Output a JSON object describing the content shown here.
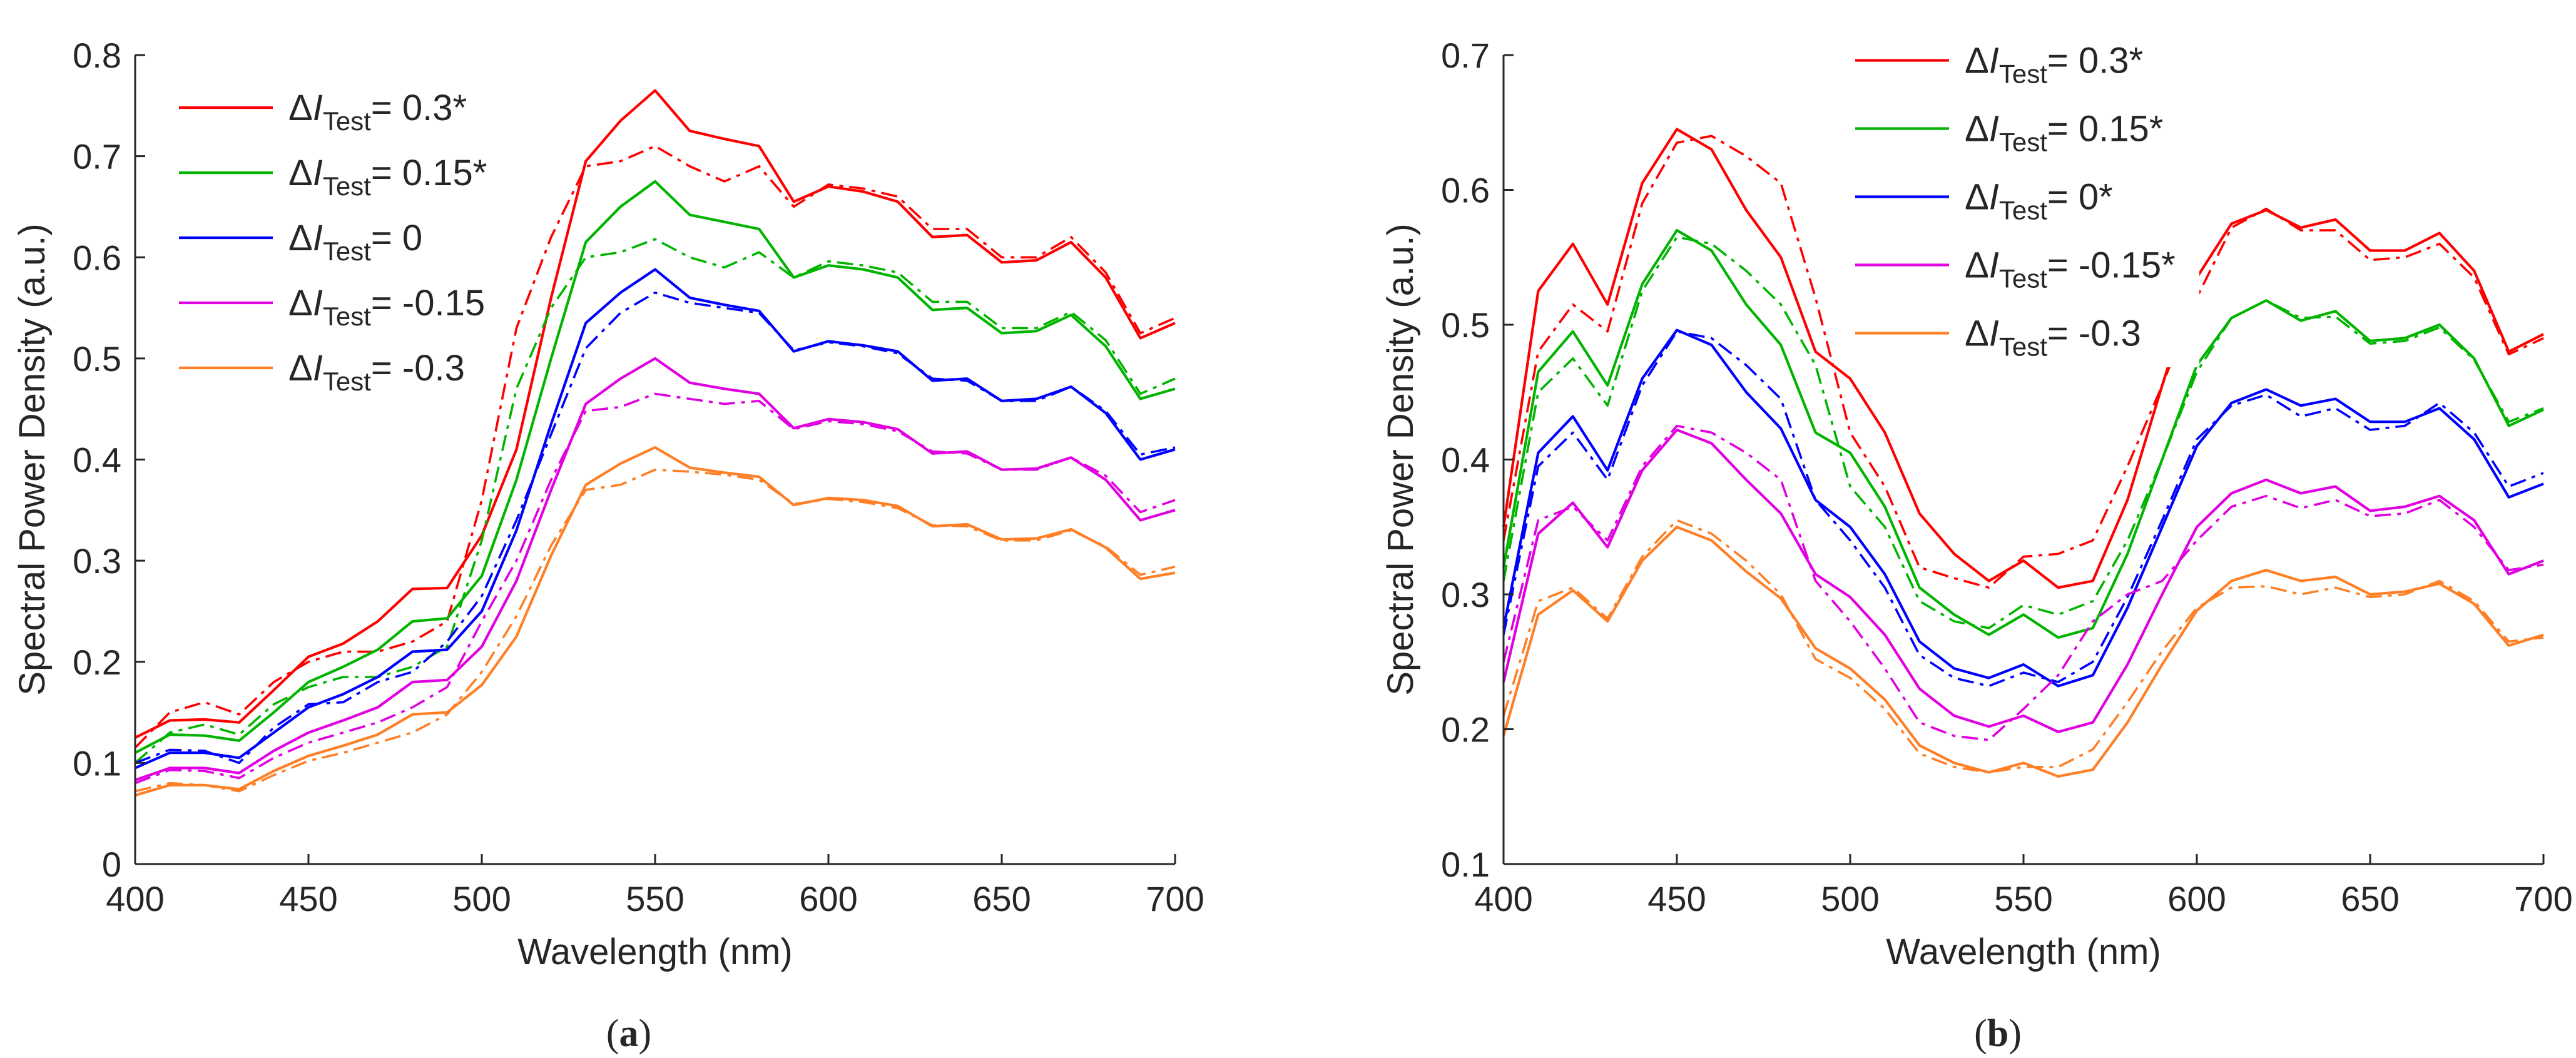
{
  "chart_data": [
    {
      "type": "line",
      "panel_label": "a",
      "title": "",
      "xlabel": "Wavelength (nm)",
      "ylabel": "Spectral Power Density (a.u.)",
      "xlim": [
        400,
        700
      ],
      "ylim": [
        0,
        0.8
      ],
      "xticks": [
        400,
        450,
        500,
        550,
        600,
        650,
        700
      ],
      "yticks": [
        0,
        0.1,
        0.2,
        0.3,
        0.4,
        0.5,
        0.6,
        0.7,
        0.8
      ],
      "ytick_labels": [
        "0",
        "0.1",
        "0.2",
        "0.3",
        "0.4",
        "0.5",
        "0.6",
        "0.7",
        "0.8"
      ],
      "grid": false,
      "legend_position": "top-left",
      "x": [
        400,
        410,
        420,
        430,
        440,
        450,
        460,
        470,
        480,
        490,
        500,
        510,
        520,
        530,
        540,
        550,
        560,
        570,
        580,
        590,
        600,
        610,
        620,
        630,
        640,
        650,
        660,
        670,
        680,
        690,
        700
      ],
      "series": [
        {
          "name": "= 0.3*",
          "delta": "Δ",
          "var": "I",
          "sub": "Test",
          "value_text": "= 0.3*",
          "color": "#ff0000",
          "solid": [
            0.125,
            0.142,
            0.143,
            0.14,
            0.172,
            0.205,
            0.218,
            0.24,
            0.272,
            0.273,
            0.325,
            0.41,
            0.56,
            0.695,
            0.735,
            0.765,
            0.725,
            0.717,
            0.71,
            0.655,
            0.67,
            0.665,
            0.655,
            0.62,
            0.622,
            0.595,
            0.597,
            0.615,
            0.58,
            0.52,
            0.535
          ],
          "dashed": [
            0.115,
            0.15,
            0.16,
            0.148,
            0.18,
            0.2,
            0.21,
            0.21,
            0.22,
            0.24,
            0.36,
            0.53,
            0.62,
            0.69,
            0.695,
            0.71,
            0.69,
            0.675,
            0.69,
            0.65,
            0.672,
            0.668,
            0.66,
            0.628,
            0.628,
            0.6,
            0.6,
            0.62,
            0.585,
            0.525,
            0.54
          ]
        },
        {
          "name": "= 0.15*",
          "delta": "Δ",
          "var": "I",
          "sub": "Test",
          "value_text": "= 0.15*",
          "color": "#00b400",
          "solid": [
            0.11,
            0.128,
            0.127,
            0.122,
            0.15,
            0.18,
            0.195,
            0.212,
            0.24,
            0.243,
            0.285,
            0.38,
            0.5,
            0.615,
            0.65,
            0.675,
            0.642,
            0.635,
            0.628,
            0.58,
            0.592,
            0.588,
            0.58,
            0.548,
            0.55,
            0.525,
            0.527,
            0.543,
            0.512,
            0.46,
            0.47
          ],
          "dashed": [
            0.1,
            0.13,
            0.138,
            0.128,
            0.158,
            0.175,
            0.185,
            0.185,
            0.195,
            0.215,
            0.32,
            0.47,
            0.55,
            0.6,
            0.605,
            0.618,
            0.6,
            0.59,
            0.605,
            0.58,
            0.596,
            0.592,
            0.585,
            0.556,
            0.556,
            0.53,
            0.53,
            0.546,
            0.518,
            0.465,
            0.48
          ]
        },
        {
          "name": "= 0",
          "delta": "Δ",
          "var": "I",
          "sub": "Test",
          "value_text": "= 0",
          "color": "#0000ff",
          "solid": [
            0.095,
            0.11,
            0.11,
            0.105,
            0.13,
            0.155,
            0.168,
            0.185,
            0.21,
            0.212,
            0.25,
            0.33,
            0.435,
            0.535,
            0.565,
            0.588,
            0.56,
            0.553,
            0.547,
            0.507,
            0.517,
            0.513,
            0.507,
            0.478,
            0.48,
            0.458,
            0.46,
            0.472,
            0.446,
            0.4,
            0.41
          ],
          "dashed": [
            0.1,
            0.113,
            0.112,
            0.1,
            0.135,
            0.158,
            0.16,
            0.18,
            0.19,
            0.22,
            0.265,
            0.34,
            0.425,
            0.51,
            0.545,
            0.565,
            0.555,
            0.55,
            0.545,
            0.508,
            0.516,
            0.512,
            0.505,
            0.48,
            0.478,
            0.458,
            0.458,
            0.472,
            0.448,
            0.405,
            0.412
          ]
        },
        {
          "name": "= -0.15",
          "delta": "Δ",
          "var": "I",
          "sub": "Test",
          "value_text": "= -0.15",
          "color": "#e100e1",
          "solid": [
            0.083,
            0.095,
            0.095,
            0.09,
            0.112,
            0.13,
            0.142,
            0.155,
            0.18,
            0.182,
            0.215,
            0.28,
            0.37,
            0.455,
            0.48,
            0.5,
            0.476,
            0.47,
            0.465,
            0.431,
            0.44,
            0.437,
            0.43,
            0.406,
            0.408,
            0.39,
            0.391,
            0.402,
            0.38,
            0.34,
            0.35
          ],
          "dashed": [
            0.08,
            0.093,
            0.092,
            0.085,
            0.105,
            0.12,
            0.13,
            0.14,
            0.155,
            0.175,
            0.24,
            0.3,
            0.38,
            0.448,
            0.452,
            0.465,
            0.46,
            0.455,
            0.458,
            0.43,
            0.438,
            0.435,
            0.428,
            0.408,
            0.406,
            0.39,
            0.39,
            0.402,
            0.384,
            0.348,
            0.36
          ]
        },
        {
          "name": "= -0.3",
          "delta": "Δ",
          "var": "I",
          "sub": "Test",
          "value_text": "= -0.3",
          "color": "#ff7f27",
          "solid": [
            0.068,
            0.078,
            0.078,
            0.074,
            0.092,
            0.107,
            0.117,
            0.128,
            0.148,
            0.15,
            0.177,
            0.225,
            0.305,
            0.375,
            0.396,
            0.412,
            0.392,
            0.387,
            0.383,
            0.355,
            0.362,
            0.36,
            0.354,
            0.334,
            0.336,
            0.321,
            0.322,
            0.331,
            0.313,
            0.282,
            0.288
          ],
          "dashed": [
            0.072,
            0.08,
            0.078,
            0.072,
            0.088,
            0.102,
            0.11,
            0.12,
            0.13,
            0.148,
            0.19,
            0.245,
            0.315,
            0.37,
            0.375,
            0.39,
            0.388,
            0.385,
            0.38,
            0.356,
            0.361,
            0.358,
            0.352,
            0.335,
            0.334,
            0.32,
            0.32,
            0.33,
            0.314,
            0.286,
            0.294
          ]
        }
      ]
    },
    {
      "type": "line",
      "panel_label": "b",
      "title": "",
      "xlabel": "Wavelength (nm)",
      "ylabel": "Spectral Power Density (a.u.)",
      "xlim": [
        400,
        700
      ],
      "ylim": [
        0.1,
        0.7
      ],
      "xticks": [
        400,
        450,
        500,
        550,
        600,
        650,
        700
      ],
      "yticks": [
        0.1,
        0.2,
        0.3,
        0.4,
        0.5,
        0.6,
        0.7
      ],
      "ytick_labels": [
        "0.1",
        "0.2",
        "0.3",
        "0.4",
        "0.5",
        "0.6",
        "0.7"
      ],
      "grid": false,
      "legend_position": "top-right",
      "x": [
        400,
        410,
        420,
        430,
        440,
        450,
        460,
        470,
        480,
        490,
        500,
        510,
        520,
        530,
        540,
        550,
        560,
        570,
        580,
        590,
        600,
        610,
        620,
        630,
        640,
        650,
        660,
        670,
        680,
        690,
        700
      ],
      "series": [
        {
          "name": "= 0.3*",
          "delta": "Δ",
          "var": "I",
          "sub": "Test",
          "value_text": "= 0.3*",
          "color": "#ff0000",
          "solid": [
            0.35,
            0.525,
            0.56,
            0.515,
            0.605,
            0.645,
            0.63,
            0.585,
            0.55,
            0.48,
            0.46,
            0.42,
            0.36,
            0.33,
            0.31,
            0.325,
            0.305,
            0.31,
            0.37,
            0.455,
            0.535,
            0.575,
            0.585,
            0.572,
            0.578,
            0.555,
            0.555,
            0.568,
            0.54,
            0.48,
            0.493
          ],
          "dashed": [
            0.34,
            0.48,
            0.515,
            0.495,
            0.59,
            0.635,
            0.64,
            0.625,
            0.605,
            0.52,
            0.42,
            0.38,
            0.32,
            0.312,
            0.305,
            0.328,
            0.33,
            0.34,
            0.395,
            0.455,
            0.52,
            0.572,
            0.586,
            0.57,
            0.57,
            0.548,
            0.55,
            0.56,
            0.535,
            0.478,
            0.49
          ]
        },
        {
          "name": "= 0.15*",
          "delta": "Δ",
          "var": "I",
          "sub": "Test",
          "value_text": "= 0.15*",
          "color": "#00b400",
          "solid": [
            0.32,
            0.465,
            0.495,
            0.455,
            0.53,
            0.57,
            0.555,
            0.515,
            0.485,
            0.42,
            0.405,
            0.365,
            0.305,
            0.285,
            0.27,
            0.285,
            0.268,
            0.275,
            0.33,
            0.4,
            0.47,
            0.505,
            0.518,
            0.503,
            0.51,
            0.488,
            0.49,
            0.5,
            0.475,
            0.425,
            0.437
          ],
          "dashed": [
            0.31,
            0.45,
            0.475,
            0.44,
            0.525,
            0.565,
            0.56,
            0.54,
            0.515,
            0.47,
            0.38,
            0.35,
            0.295,
            0.28,
            0.275,
            0.292,
            0.285,
            0.295,
            0.34,
            0.4,
            0.465,
            0.505,
            0.518,
            0.505,
            0.506,
            0.486,
            0.488,
            0.498,
            0.474,
            0.428,
            0.438
          ]
        },
        {
          "name": "= 0*",
          "delta": "Δ",
          "var": "I",
          "sub": "Test",
          "value_text": "= 0*",
          "color": "#0000ff",
          "solid": [
            0.275,
            0.405,
            0.432,
            0.392,
            0.46,
            0.496,
            0.485,
            0.45,
            0.423,
            0.37,
            0.35,
            0.315,
            0.265,
            0.245,
            0.238,
            0.248,
            0.232,
            0.24,
            0.29,
            0.35,
            0.41,
            0.442,
            0.452,
            0.44,
            0.445,
            0.428,
            0.428,
            0.438,
            0.415,
            0.372,
            0.382
          ],
          "dashed": [
            0.27,
            0.395,
            0.42,
            0.385,
            0.455,
            0.495,
            0.49,
            0.47,
            0.445,
            0.37,
            0.34,
            0.305,
            0.255,
            0.238,
            0.232,
            0.242,
            0.235,
            0.25,
            0.298,
            0.355,
            0.415,
            0.44,
            0.448,
            0.432,
            0.438,
            0.422,
            0.425,
            0.442,
            0.42,
            0.38,
            0.39
          ]
        },
        {
          "name": "= -0.15*",
          "delta": "Δ",
          "var": "I",
          "sub": "Test",
          "value_text": "= -0.15*",
          "color": "#e100e1",
          "solid": [
            0.235,
            0.345,
            0.368,
            0.335,
            0.392,
            0.422,
            0.412,
            0.385,
            0.36,
            0.315,
            0.298,
            0.27,
            0.23,
            0.21,
            0.202,
            0.21,
            0.198,
            0.205,
            0.248,
            0.3,
            0.35,
            0.375,
            0.385,
            0.375,
            0.38,
            0.362,
            0.365,
            0.373,
            0.355,
            0.315,
            0.325
          ],
          "dashed": [
            0.25,
            0.355,
            0.365,
            0.34,
            0.395,
            0.425,
            0.42,
            0.405,
            0.385,
            0.31,
            0.28,
            0.245,
            0.205,
            0.195,
            0.192,
            0.215,
            0.24,
            0.28,
            0.3,
            0.31,
            0.34,
            0.365,
            0.373,
            0.364,
            0.37,
            0.358,
            0.36,
            0.37,
            0.35,
            0.318,
            0.322
          ]
        },
        {
          "name": "= -0.3",
          "delta": "Δ",
          "var": "I",
          "sub": "Test",
          "value_text": "= -0.3",
          "color": "#ff7f27",
          "solid": [
            0.195,
            0.285,
            0.303,
            0.28,
            0.325,
            0.35,
            0.34,
            0.317,
            0.297,
            0.26,
            0.245,
            0.222,
            0.188,
            0.175,
            0.168,
            0.175,
            0.165,
            0.17,
            0.205,
            0.248,
            0.288,
            0.31,
            0.318,
            0.31,
            0.313,
            0.3,
            0.302,
            0.308,
            0.293,
            0.262,
            0.27
          ],
          "dashed": [
            0.21,
            0.295,
            0.305,
            0.282,
            0.328,
            0.355,
            0.345,
            0.325,
            0.3,
            0.252,
            0.238,
            0.215,
            0.182,
            0.172,
            0.168,
            0.172,
            0.172,
            0.185,
            0.22,
            0.258,
            0.29,
            0.305,
            0.306,
            0.3,
            0.305,
            0.298,
            0.3,
            0.31,
            0.295,
            0.265,
            0.268
          ]
        }
      ]
    }
  ]
}
